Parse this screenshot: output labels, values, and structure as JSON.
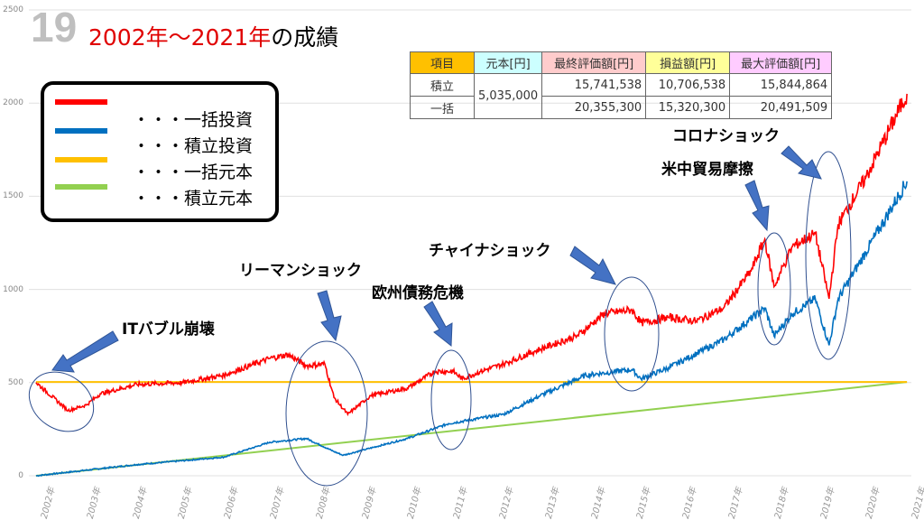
{
  "slide_number": "19",
  "title": {
    "red": "2002年～2021年",
    "black": "の成績"
  },
  "table": {
    "headers": [
      "項目",
      "元本[円]",
      "最終評価額[円]",
      "損益額[円]",
      "最大評価額[円]"
    ],
    "header_colors": [
      "#ffc000",
      "#ccffff",
      "#ffcccc",
      "#ffff99",
      "#ffccff"
    ],
    "principal": "5,035,000",
    "rows": [
      {
        "label": "積立",
        "final": "15,741,538",
        "profit": "10,706,538",
        "max": "15,844,864"
      },
      {
        "label": "一括",
        "final": "20,355,300",
        "profit": "15,320,300",
        "max": "20,491,509"
      }
    ]
  },
  "chart_data": {
    "type": "line",
    "title": "2002年～2021年の成績",
    "xlabel": "",
    "ylabel": "",
    "ylim": [
      0,
      2500
    ],
    "yticks": [
      "0",
      "500",
      "1000",
      "1500",
      "2000",
      "2500"
    ],
    "xticks": [
      "2002年",
      "2003年",
      "2004年",
      "2005年",
      "2006年",
      "2007年",
      "2008年",
      "2009年",
      "2010年",
      "2011年",
      "2012年",
      "2013年",
      "2014年",
      "2015年",
      "2016年",
      "2017年",
      "2018年",
      "2019年",
      "2020年",
      "2021年"
    ],
    "grid": true,
    "legend_position": "top-left",
    "series": [
      {
        "name": "・・・一括投資",
        "color": "#ff0000",
        "points": [
          [
            2001.9,
            500
          ],
          [
            2002.6,
            350
          ],
          [
            2003.0,
            380
          ],
          [
            2003.3,
            440
          ],
          [
            2004.1,
            490
          ],
          [
            2005.1,
            500
          ],
          [
            2006.0,
            540
          ],
          [
            2007.0,
            630
          ],
          [
            2007.4,
            650
          ],
          [
            2007.8,
            590
          ],
          [
            2008.2,
            600
          ],
          [
            2008.4,
            420
          ],
          [
            2008.7,
            330
          ],
          [
            2009.2,
            430
          ],
          [
            2010.0,
            470
          ],
          [
            2010.6,
            560
          ],
          [
            2011.0,
            560
          ],
          [
            2011.2,
            520
          ],
          [
            2011.6,
            560
          ],
          [
            2012.1,
            600
          ],
          [
            2012.9,
            680
          ],
          [
            2013.7,
            750
          ],
          [
            2014.3,
            870
          ],
          [
            2014.9,
            890
          ],
          [
            2015.1,
            820
          ],
          [
            2015.7,
            850
          ],
          [
            2016.3,
            830
          ],
          [
            2016.9,
            900
          ],
          [
            2017.5,
            1100
          ],
          [
            2017.8,
            1270
          ],
          [
            2018.0,
            1015
          ],
          [
            2018.4,
            1230
          ],
          [
            2018.9,
            1300
          ],
          [
            2019.2,
            950
          ],
          [
            2019.4,
            1350
          ],
          [
            2020.0,
            1600
          ],
          [
            2020.9,
            2050
          ]
        ]
      },
      {
        "name": "・・・積立投資",
        "color": "#0070c0",
        "points": [
          [
            2001.9,
            0
          ],
          [
            2004.1,
            60
          ],
          [
            2006.0,
            100
          ],
          [
            2007.0,
            180
          ],
          [
            2007.8,
            200
          ],
          [
            2008.4,
            130
          ],
          [
            2008.6,
            110
          ],
          [
            2010.0,
            200
          ],
          [
            2010.9,
            280
          ],
          [
            2012.1,
            330
          ],
          [
            2012.9,
            430
          ],
          [
            2013.9,
            540
          ],
          [
            2014.9,
            570
          ],
          [
            2015.1,
            520
          ],
          [
            2015.7,
            580
          ],
          [
            2016.9,
            730
          ],
          [
            2017.8,
            900
          ],
          [
            2018.0,
            750
          ],
          [
            2018.4,
            870
          ],
          [
            2018.9,
            950
          ],
          [
            2019.2,
            700
          ],
          [
            2019.4,
            950
          ],
          [
            2020.0,
            1200
          ],
          [
            2020.9,
            1580
          ]
        ]
      },
      {
        "name": "・・・一括元本",
        "color": "#ffc000",
        "points": [
          [
            2001.9,
            503.5
          ],
          [
            2020.9,
            503.5
          ]
        ]
      },
      {
        "name": "・・・積立元本",
        "color": "#92d050",
        "points": [
          [
            2001.9,
            0
          ],
          [
            2020.9,
            503.5
          ]
        ]
      }
    ],
    "annotations": [
      "ITバブル崩壊",
      "リーマンショック",
      "欧州債務危機",
      "チャイナショック",
      "米中貿易摩擦",
      "コロナショック"
    ]
  }
}
